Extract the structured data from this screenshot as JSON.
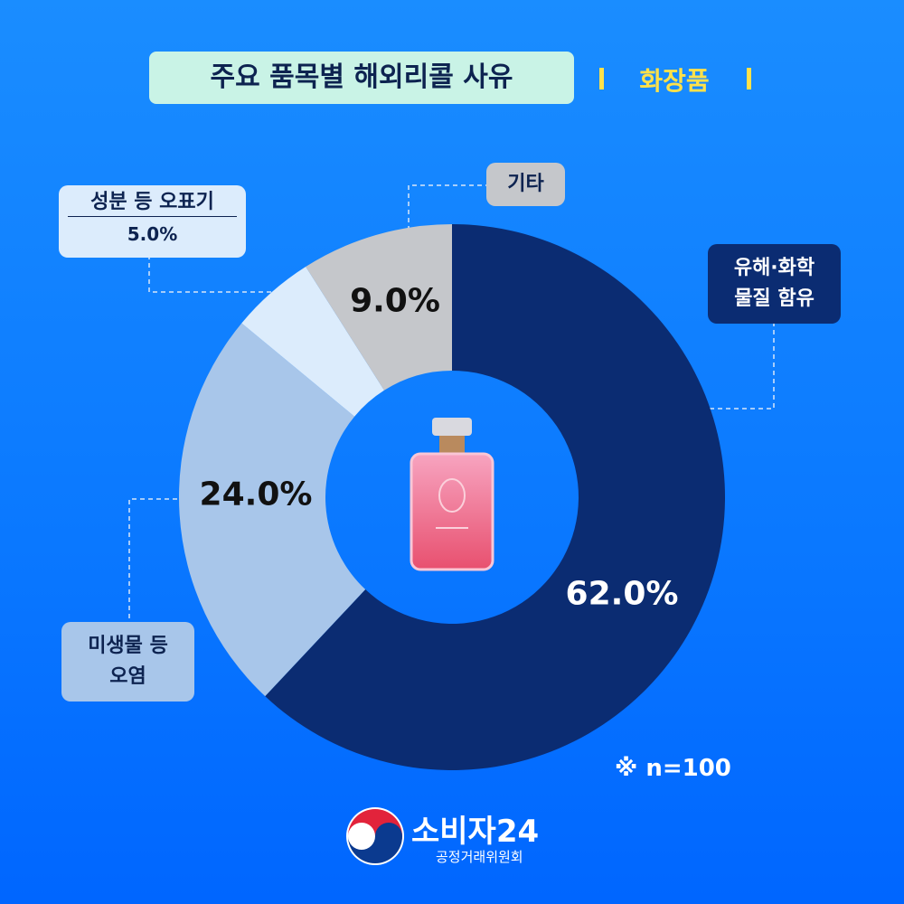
{
  "chart_data": {
    "type": "donut",
    "title": "주요 품목별 해외리콜 사유",
    "subtitle": "화장품",
    "categories": [
      "유해·화학\n물질 함유",
      "미생물 등\n오염",
      "성분 등 오표기",
      "기타"
    ],
    "values": [
      62.0,
      24.0,
      5.0,
      9.0
    ],
    "value_labels": [
      "62.0%",
      "24.0%",
      "5.0%",
      "9.0%"
    ],
    "colors": [
      "#0b2c72",
      "#a8c6ea",
      "#dcecfc",
      "#c5c7cb"
    ],
    "note": "※ n=100"
  },
  "logo": {
    "name": "소비자24",
    "org": "공정거래위원회"
  }
}
